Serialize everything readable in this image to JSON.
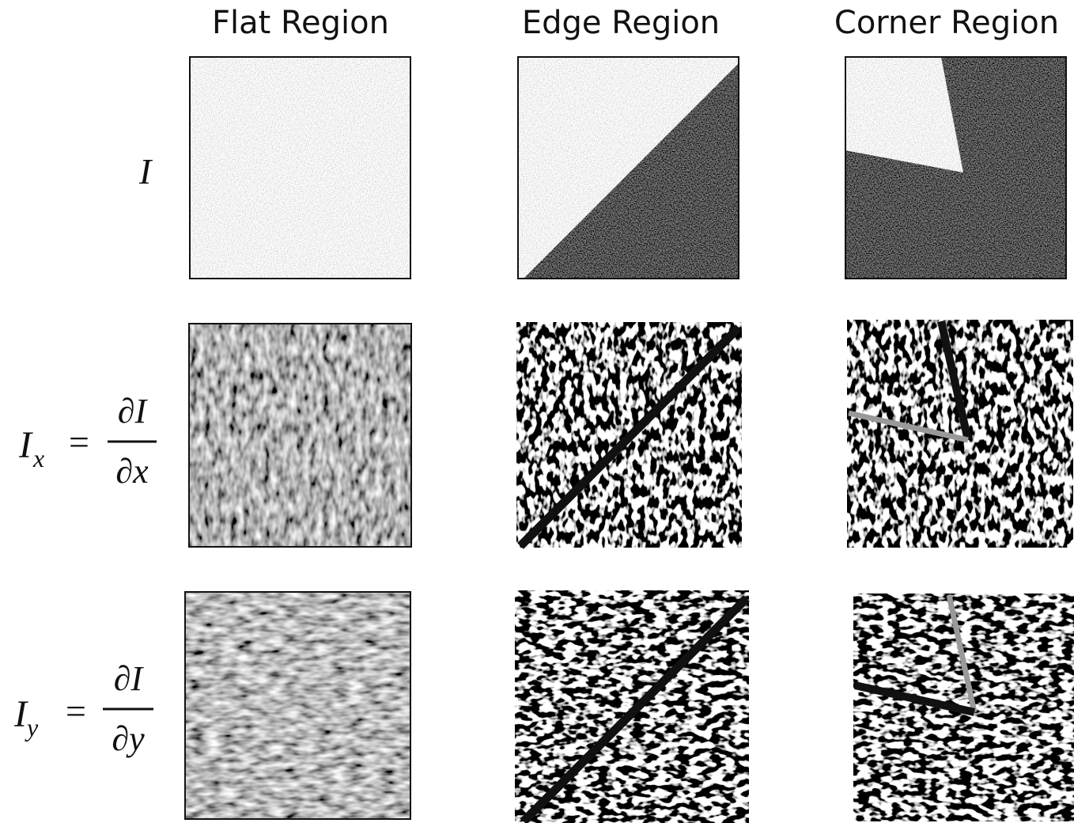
{
  "columns": [
    "Flat Region",
    "Edge Region",
    "Corner Region"
  ],
  "rows": [
    {
      "symbol": "I"
    },
    {
      "symbol": "I",
      "subscript": "x",
      "relation": "=",
      "numerator": "∂I",
      "denominator": "∂x"
    },
    {
      "symbol": "I",
      "subscript": "y",
      "relation": "=",
      "numerator": "∂I",
      "denominator": "∂y"
    }
  ]
}
